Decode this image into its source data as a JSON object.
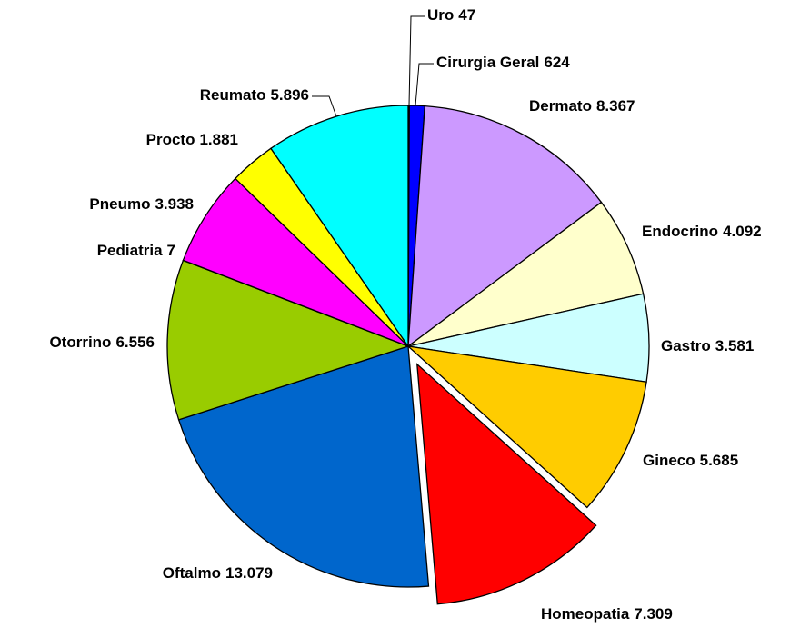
{
  "chart_data": {
    "type": "pie",
    "categories": [
      "Uro",
      "Cirurgia Geral",
      "Dermato",
      "Endocrino",
      "Gastro",
      "Gineco",
      "Homeopatia",
      "Oftalmo",
      "Otorrino",
      "Pediatria",
      "Pneumo",
      "Procto",
      "Reumato"
    ],
    "values": [
      47,
      624,
      8367,
      4092,
      3581,
      5685,
      7309,
      13079,
      6556,
      7,
      3938,
      1881,
      5896
    ],
    "value_labels": [
      "47",
      "624",
      "8.367",
      "4.092",
      "3.581",
      "5.685",
      "7.309",
      "13.079",
      "6.556",
      "7",
      "3.938",
      "1.881",
      "5.896"
    ],
    "colors": [
      "#0000ff",
      "#0000ff",
      "#cc99ff",
      "#ffffcc",
      "#ccffff",
      "#ffcc00",
      "#ff0000",
      "#0066cc",
      "#99cc00",
      "#993366",
      "#ff00ff",
      "#ffff00",
      "#00ffff"
    ],
    "explode_index": 6
  }
}
